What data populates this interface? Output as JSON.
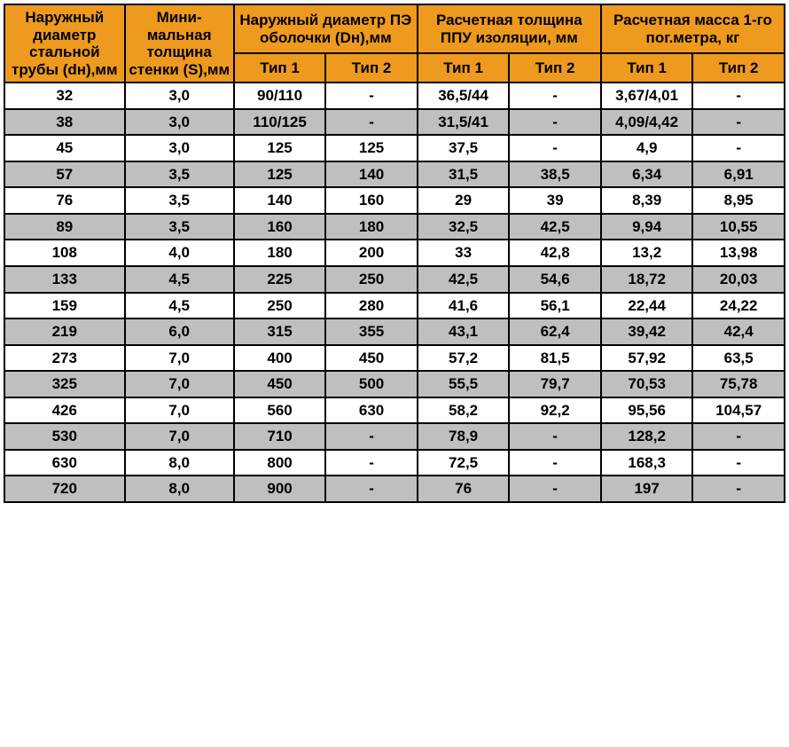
{
  "colors": {
    "header_bg": "#ed9a1f",
    "border": "#000000",
    "row_white": "#ffffff",
    "row_gray": "#bfbfbf",
    "text": "#000000"
  },
  "header": {
    "col1": "Наружный диаметр стальной трубы (dн),мм",
    "col2": "Мини-мальная толщина стенки (S),мм",
    "grp1": "Наружный диаметр ПЭ оболочки (Dн),мм",
    "grp2": "Расчетная толщина ППУ изоляции, мм",
    "grp3": "Расчетная масса 1-го пог.метра, кг",
    "tip1": "Тип 1",
    "tip2": "Тип 2"
  },
  "rows": [
    {
      "dn": "32",
      "s": "3,0",
      "d1": "90/110",
      "d2": "-",
      "t1": "36,5/44",
      "t2": "-",
      "m1": "3,67/4,01",
      "m2": "-"
    },
    {
      "dn": "38",
      "s": "3,0",
      "d1": "110/125",
      "d2": "-",
      "t1": "31,5/41",
      "t2": "-",
      "m1": "4,09/4,42",
      "m2": "-"
    },
    {
      "dn": "45",
      "s": "3,0",
      "d1": "125",
      "d2": "125",
      "t1": "37,5",
      "t2": "-",
      "m1": "4,9",
      "m2": "-"
    },
    {
      "dn": "57",
      "s": "3,5",
      "d1": "125",
      "d2": "140",
      "t1": "31,5",
      "t2": "38,5",
      "m1": "6,34",
      "m2": "6,91"
    },
    {
      "dn": "76",
      "s": "3,5",
      "d1": "140",
      "d2": "160",
      "t1": "29",
      "t2": "39",
      "m1": "8,39",
      "m2": "8,95"
    },
    {
      "dn": "89",
      "s": "3,5",
      "d1": "160",
      "d2": "180",
      "t1": "32,5",
      "t2": "42,5",
      "m1": "9,94",
      "m2": "10,55"
    },
    {
      "dn": "108",
      "s": "4,0",
      "d1": "180",
      "d2": "200",
      "t1": "33",
      "t2": "42,8",
      "m1": "13,2",
      "m2": "13,98"
    },
    {
      "dn": "133",
      "s": "4,5",
      "d1": "225",
      "d2": "250",
      "t1": "42,5",
      "t2": "54,6",
      "m1": "18,72",
      "m2": "20,03"
    },
    {
      "dn": "159",
      "s": "4,5",
      "d1": "250",
      "d2": "280",
      "t1": "41,6",
      "t2": "56,1",
      "m1": "22,44",
      "m2": "24,22"
    },
    {
      "dn": "219",
      "s": "6,0",
      "d1": "315",
      "d2": "355",
      "t1": "43,1",
      "t2": "62,4",
      "m1": "39,42",
      "m2": "42,4"
    },
    {
      "dn": "273",
      "s": "7,0",
      "d1": "400",
      "d2": "450",
      "t1": "57,2",
      "t2": "81,5",
      "m1": "57,92",
      "m2": "63,5"
    },
    {
      "dn": "325",
      "s": "7,0",
      "d1": "450",
      "d2": "500",
      "t1": "55,5",
      "t2": "79,7",
      "m1": "70,53",
      "m2": "75,78"
    },
    {
      "dn": "426",
      "s": "7,0",
      "d1": "560",
      "d2": "630",
      "t1": "58,2",
      "t2": "92,2",
      "m1": "95,56",
      "m2": "104,57"
    },
    {
      "dn": "530",
      "s": "7,0",
      "d1": "710",
      "d2": "-",
      "t1": "78,9",
      "t2": "-",
      "m1": "128,2",
      "m2": "-"
    },
    {
      "dn": "630",
      "s": "8,0",
      "d1": "800",
      "d2": "-",
      "t1": "72,5",
      "t2": "-",
      "m1": "168,3",
      "m2": "-"
    },
    {
      "dn": "720",
      "s": "8,0",
      "d1": "900",
      "d2": "-",
      "t1": "76",
      "t2": "-",
      "m1": "197",
      "m2": "-"
    }
  ]
}
